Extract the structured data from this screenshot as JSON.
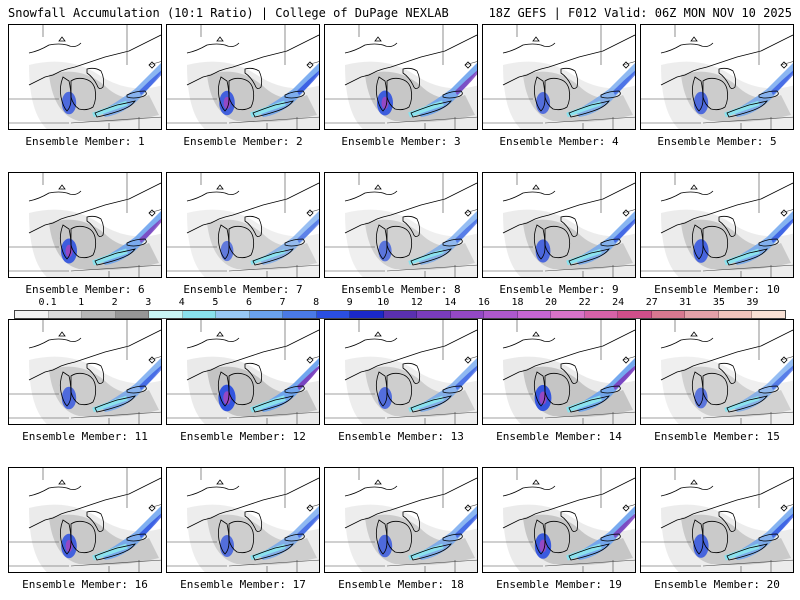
{
  "header": {
    "left": "Snowfall Accumulation (10:1 Ratio) | College of DuPage NEXLAB",
    "right": "18Z GEFS | F012 Valid: 06Z MON NOV 10 2025"
  },
  "legend": {
    "ticks": [
      "0.1",
      "1",
      "2",
      "3",
      "4",
      "5",
      "6",
      "7",
      "8",
      "9",
      "10",
      "12",
      "14",
      "16",
      "18",
      "20",
      "22",
      "24",
      "27",
      "31",
      "35",
      "39"
    ],
    "colors": [
      "#f2f2f2",
      "#d9d9d9",
      "#b8b8b8",
      "#969696",
      "#c8f4f4",
      "#8ae2ee",
      "#98c8f4",
      "#6aa2ee",
      "#4a7ae6",
      "#2a4ee0",
      "#1a28c8",
      "#5a30b0",
      "#7a3cbc",
      "#9448c4",
      "#ae58cc",
      "#c666d2",
      "#d873c8",
      "#d662a8",
      "#d04e8a",
      "#d87890",
      "#e4a0a8",
      "#f0c4bc",
      "#f8e0d4"
    ]
  },
  "members": [
    {
      "label": "Ensemble Member: 1",
      "intensity": 0.55
    },
    {
      "label": "Ensemble Member: 2",
      "intensity": 0.7
    },
    {
      "label": "Ensemble Member: 3",
      "intensity": 0.75
    },
    {
      "label": "Ensemble Member: 4",
      "intensity": 0.5
    },
    {
      "label": "Ensemble Member: 5",
      "intensity": 0.55
    },
    {
      "label": "Ensemble Member: 6",
      "intensity": 0.75
    },
    {
      "label": "Ensemble Member: 7",
      "intensity": 0.35
    },
    {
      "label": "Ensemble Member: 8",
      "intensity": 0.4
    },
    {
      "label": "Ensemble Member: 9",
      "intensity": 0.6
    },
    {
      "label": "Ensemble Member: 10",
      "intensity": 0.65
    },
    {
      "label": "Ensemble Member: 11",
      "intensity": 0.55
    },
    {
      "label": "Ensemble Member: 12",
      "intensity": 0.9
    },
    {
      "label": "Ensemble Member: 13",
      "intensity": 0.5
    },
    {
      "label": "Ensemble Member: 14",
      "intensity": 0.85
    },
    {
      "label": "Ensemble Member: 15",
      "intensity": 0.4
    },
    {
      "label": "Ensemble Member: 16",
      "intensity": 0.7
    },
    {
      "label": "Ensemble Member: 17",
      "intensity": 0.5
    },
    {
      "label": "Ensemble Member: 18",
      "intensity": 0.55
    },
    {
      "label": "Ensemble Member: 19",
      "intensity": 0.8
    },
    {
      "label": "Ensemble Member: 20",
      "intensity": 0.65
    }
  ]
}
